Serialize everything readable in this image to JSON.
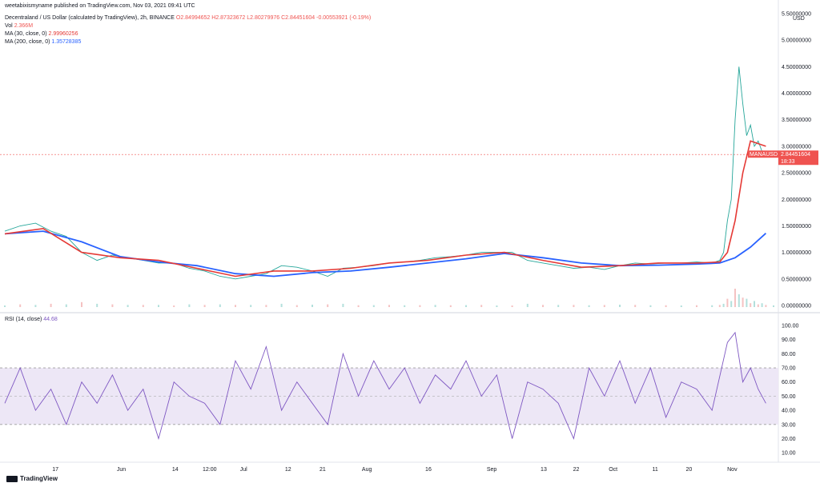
{
  "header": {
    "publisher": "weetabixismyname published on TradingView.com, Nov 03, 2021 09:41 UTC",
    "symbol_line": "Decentraland / US Dollar (calculated by TradingView), 2h, BINANCE",
    "ohlc": {
      "o": "O2.84994652",
      "h": "H2.87323672",
      "l": "L2.80279976",
      "c": "C2.84451604",
      "chg": "-0.00553921 (-0.19%)"
    },
    "vol_label": "Vol",
    "vol_value": "2.366M",
    "ma30_label": "MA (30, close, 0)",
    "ma30_value": "2.99960256",
    "ma200_label": "MA (200, close, 0)",
    "ma200_value": "1.35728385",
    "rsi_label": "RSI (14, close)",
    "rsi_value": "44.68"
  },
  "price_box": {
    "symbol": "MANAUSD",
    "price": "2.84451604",
    "countdown": "18:33"
  },
  "footer": {
    "brand": "TradingView"
  },
  "colors": {
    "candle_up": "#26a69a",
    "candle_down": "#ef5350",
    "ma30": "#e53935",
    "ma200": "#2962ff",
    "rsi": "#7e57c2",
    "rsi_band": "#ede7f6"
  },
  "chart_data": [
    {
      "type": "line",
      "name": "price",
      "y_axis_label": "USD",
      "y_ticks": [
        "5.50000000",
        "5.00000000",
        "4.50000000",
        "4.00000000",
        "3.50000000",
        "3.00000000",
        "2.50000000",
        "2.00000000",
        "1.50000000",
        "1.00000000",
        "0.50000000",
        "0.00000000"
      ],
      "ylim": [
        0,
        5.5
      ],
      "x_ticks": [
        "17",
        "Jun",
        "14",
        "12:00",
        "Jul",
        "12",
        "21",
        "Aug",
        "16",
        "Sep",
        "13",
        "22",
        "Oct",
        "11",
        "20",
        "Nov"
      ],
      "x_tick_positions": [
        0.0658,
        0.1516,
        0.2216,
        0.2664,
        0.3106,
        0.3685,
        0.4134,
        0.471,
        0.551,
        0.6334,
        0.701,
        0.7432,
        0.7913,
        0.846,
        0.89,
        0.9462
      ],
      "series": [
        {
          "name": "close",
          "x": [
            0.0,
            0.02,
            0.04,
            0.06,
            0.08,
            0.1,
            0.12,
            0.14,
            0.16,
            0.18,
            0.2,
            0.22,
            0.24,
            0.26,
            0.28,
            0.3,
            0.32,
            0.34,
            0.36,
            0.38,
            0.4,
            0.42,
            0.44,
            0.46,
            0.48,
            0.5,
            0.52,
            0.54,
            0.56,
            0.58,
            0.6,
            0.62,
            0.64,
            0.66,
            0.68,
            0.7,
            0.72,
            0.74,
            0.76,
            0.78,
            0.8,
            0.82,
            0.84,
            0.86,
            0.88,
            0.9,
            0.92,
            0.93,
            0.935,
            0.94,
            0.945,
            0.95,
            0.955,
            0.96,
            0.965,
            0.97,
            0.975,
            0.98,
            0.985,
            0.99,
            1.0
          ],
          "y": [
            1.4,
            1.5,
            1.55,
            1.4,
            1.3,
            1.0,
            0.85,
            0.95,
            0.9,
            0.85,
            0.8,
            0.8,
            0.7,
            0.65,
            0.55,
            0.5,
            0.55,
            0.6,
            0.75,
            0.72,
            0.65,
            0.55,
            0.7,
            0.72,
            0.75,
            0.8,
            0.82,
            0.85,
            0.9,
            0.92,
            0.95,
            1.0,
            1.0,
            1.0,
            0.85,
            0.8,
            0.75,
            0.7,
            0.72,
            0.68,
            0.75,
            0.8,
            0.78,
            0.8,
            0.8,
            0.82,
            0.8,
            0.85,
            1.0,
            1.6,
            2.0,
            3.5,
            4.5,
            3.8,
            3.2,
            3.4,
            3.0,
            3.1,
            2.9,
            2.85,
            2.84
          ]
        },
        {
          "name": "MA (30, close, 0)",
          "x": [
            0.0,
            0.05,
            0.1,
            0.15,
            0.2,
            0.25,
            0.3,
            0.35,
            0.4,
            0.45,
            0.5,
            0.55,
            0.6,
            0.65,
            0.7,
            0.75,
            0.8,
            0.85,
            0.9,
            0.93,
            0.94,
            0.95,
            0.96,
            0.97,
            0.98,
            0.99
          ],
          "y": [
            1.35,
            1.45,
            1.0,
            0.9,
            0.85,
            0.7,
            0.55,
            0.65,
            0.65,
            0.7,
            0.8,
            0.85,
            0.95,
            1.0,
            0.85,
            0.72,
            0.75,
            0.8,
            0.8,
            0.82,
            1.0,
            1.6,
            2.5,
            3.1,
            3.05,
            3.0
          ]
        },
        {
          "name": "MA (200, close, 0)",
          "x": [
            0.0,
            0.05,
            0.1,
            0.15,
            0.2,
            0.25,
            0.3,
            0.35,
            0.4,
            0.45,
            0.5,
            0.55,
            0.6,
            0.65,
            0.7,
            0.75,
            0.8,
            0.85,
            0.9,
            0.93,
            0.95,
            0.97,
            0.99
          ],
          "y": [
            1.35,
            1.4,
            1.2,
            0.92,
            0.82,
            0.75,
            0.6,
            0.55,
            0.62,
            0.65,
            0.72,
            0.8,
            0.88,
            0.98,
            0.9,
            0.8,
            0.75,
            0.76,
            0.78,
            0.8,
            0.9,
            1.1,
            1.36
          ]
        }
      ]
    },
    {
      "type": "line",
      "name": "rsi",
      "y_ticks": [
        "100.00",
        "90.00",
        "80.00",
        "70.00",
        "60.00",
        "50.00",
        "40.00",
        "30.00",
        "20.00",
        "10.00"
      ],
      "ylim": [
        5,
        100
      ],
      "band": [
        30,
        70
      ],
      "midline": 50,
      "series": [
        {
          "name": "RSI (14, close)",
          "x": [
            0.0,
            0.02,
            0.04,
            0.06,
            0.08,
            0.1,
            0.12,
            0.14,
            0.16,
            0.18,
            0.2,
            0.22,
            0.24,
            0.26,
            0.28,
            0.3,
            0.32,
            0.34,
            0.36,
            0.38,
            0.4,
            0.42,
            0.44,
            0.46,
            0.48,
            0.5,
            0.52,
            0.54,
            0.56,
            0.58,
            0.6,
            0.62,
            0.64,
            0.66,
            0.68,
            0.7,
            0.72,
            0.74,
            0.76,
            0.78,
            0.8,
            0.82,
            0.84,
            0.86,
            0.88,
            0.9,
            0.92,
            0.94,
            0.95,
            0.96,
            0.97,
            0.98,
            0.99
          ],
          "y": [
            45,
            70,
            40,
            55,
            30,
            60,
            45,
            65,
            40,
            55,
            20,
            60,
            50,
            45,
            30,
            75,
            55,
            85,
            40,
            60,
            45,
            30,
            80,
            50,
            75,
            55,
            70,
            45,
            65,
            55,
            75,
            50,
            65,
            20,
            60,
            55,
            45,
            20,
            70,
            50,
            75,
            45,
            70,
            35,
            60,
            55,
            40,
            88,
            95,
            60,
            70,
            55,
            45
          ]
        }
      ]
    }
  ]
}
